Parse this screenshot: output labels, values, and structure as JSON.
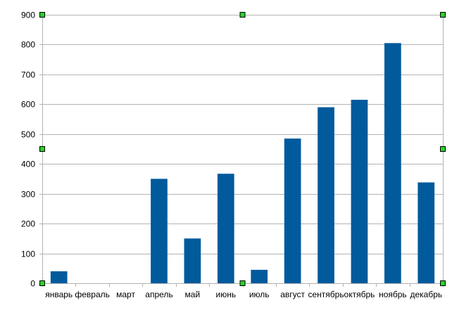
{
  "chart_data": {
    "type": "bar",
    "categories": [
      "январь",
      "февраль",
      "март",
      "апрель",
      "май",
      "июнь",
      "июль",
      "август",
      "сентябрь",
      "октябрь",
      "ноябрь",
      "декабрь"
    ],
    "values": [
      40,
      0,
      0,
      350,
      150,
      367,
      45,
      485,
      590,
      615,
      805,
      338
    ],
    "ylim": [
      0,
      900
    ],
    "yticks": [
      0,
      100,
      200,
      300,
      400,
      500,
      600,
      700,
      800,
      900
    ],
    "grid": true,
    "legend": "none",
    "title": "",
    "xlabel": "",
    "ylabel": "",
    "colors": {
      "bar": "#005a9c",
      "grid": "#b3b3b3",
      "axis": "#b3b3b3",
      "handle_fill": "#2bd12b",
      "handle_stroke": "#000000"
    }
  }
}
